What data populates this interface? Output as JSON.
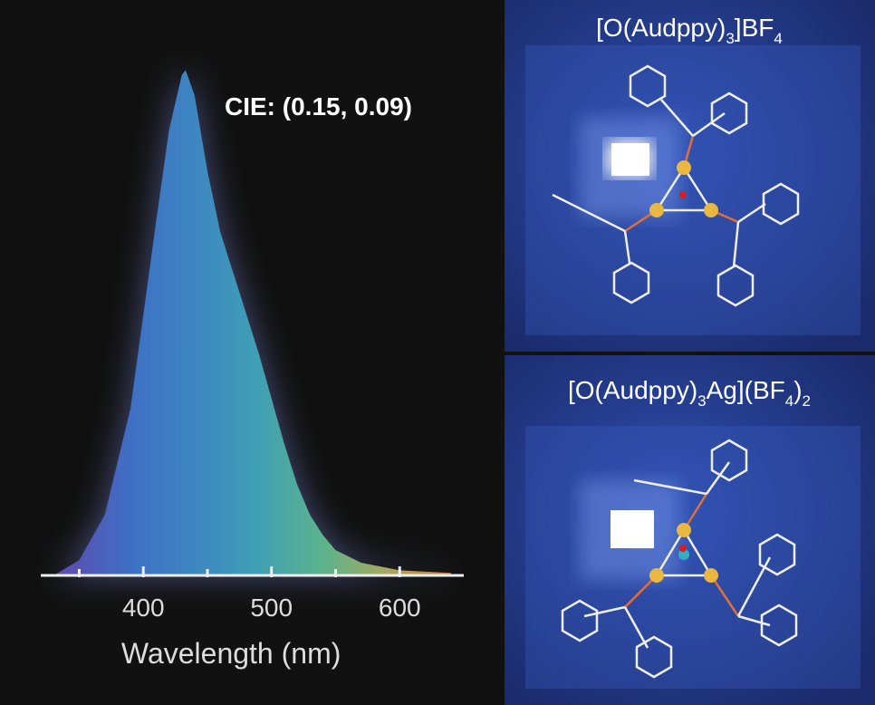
{
  "chart_data": {
    "type": "area",
    "annotation": "CIE: (0.15, 0.09)",
    "xlabel": "Wavelength (nm)",
    "x": [
      330,
      350,
      370,
      390,
      410,
      420,
      430,
      433,
      440,
      450,
      460,
      470,
      480,
      490,
      500,
      510,
      520,
      530,
      540,
      550,
      570,
      600,
      640
    ],
    "values": [
      0.0,
      0.03,
      0.12,
      0.33,
      0.7,
      0.88,
      0.99,
      1.0,
      0.95,
      0.8,
      0.68,
      0.6,
      0.52,
      0.44,
      0.35,
      0.26,
      0.18,
      0.12,
      0.08,
      0.05,
      0.025,
      0.01,
      0.005
    ],
    "colors": [
      "#5a4fb0",
      "#3f6fc4",
      "#3d86c2",
      "#3f9fb4",
      "#5bb38c",
      "#a9a860",
      "#d8783a"
    ],
    "xlim": [
      320,
      650
    ],
    "xticks": [
      400,
      500,
      600
    ],
    "xminor_ticks": [
      350,
      450,
      550
    ],
    "ylim": [
      0,
      1.04
    ]
  },
  "panels": [
    {
      "label_parts": [
        "[O(Audppy)",
        "3",
        "]BF",
        "4"
      ]
    },
    {
      "label_parts": [
        "[O(Audppy)",
        "3",
        "Ag](BF",
        "4",
        ")",
        "2"
      ]
    }
  ]
}
